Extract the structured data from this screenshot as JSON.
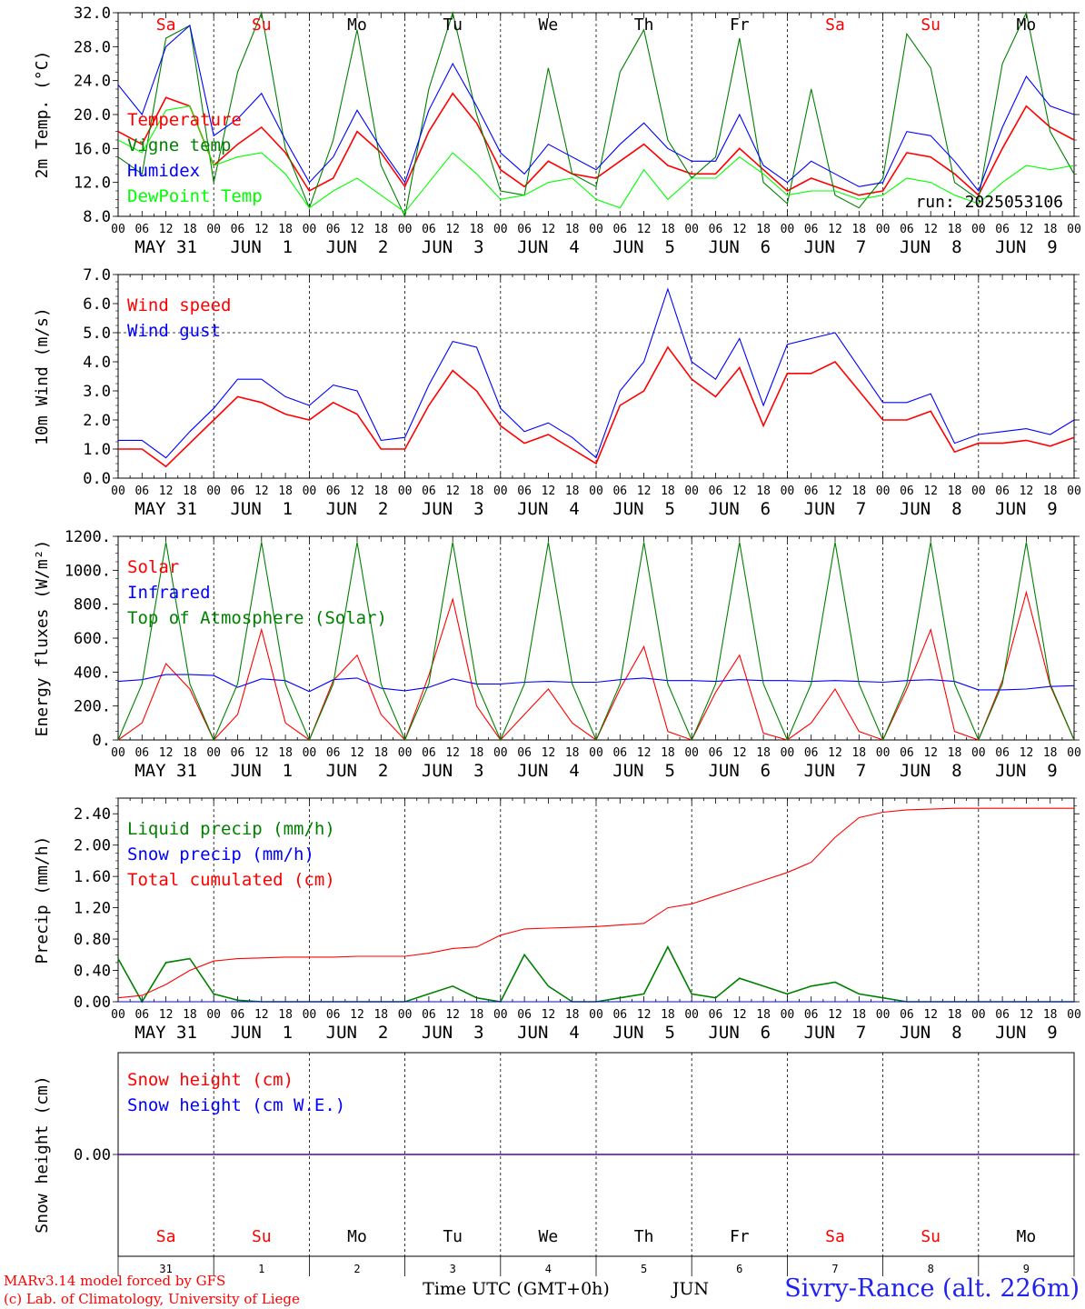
{
  "footer": {
    "credit_line1": "MARv3.14 model forced by GFS",
    "credit_line2": "(c) Lab. of Climatology, University of Liege",
    "xaxis_title": "Time UTC (GMT+0h)",
    "month": "JUN",
    "station": "Sivry-Rance (alt. 226m)"
  },
  "days": {
    "weekday_labels": [
      "Sa",
      "Su",
      "Mo",
      "Tu",
      "We",
      "Th",
      "Fr",
      "Sa",
      "Su",
      "Mo"
    ],
    "weekday_colors": [
      "#ff0000",
      "#ff0000",
      "#000000",
      "#000000",
      "#000000",
      "#000000",
      "#000000",
      "#ff0000",
      "#ff0000",
      "#000000"
    ],
    "date_labels": [
      "MAY 31",
      "JUN  1",
      "JUN  2",
      "JUN  3",
      "JUN  4",
      "JUN  5",
      "JUN  6",
      "JUN  7",
      "JUN  8",
      "JUN  9"
    ],
    "day_numbers": [
      "31",
      "1",
      "2",
      "3",
      "4",
      "5",
      "6",
      "7",
      "8",
      "9"
    ],
    "hour_ticks": [
      "00",
      "06",
      "12",
      "18"
    ],
    "hour_end": "00"
  },
  "chart_data": [
    {
      "type": "line",
      "ylabel": "2m Temp. (°C)",
      "ylim": [
        8,
        32
      ],
      "yticks": [
        "8.0",
        "12.0",
        "16.0",
        "20.0",
        "24.0",
        "28.0",
        "32.0"
      ],
      "run_label": "run: 2025053106",
      "x_hours": [
        0,
        6,
        12,
        18,
        24,
        30,
        36,
        42,
        48,
        54,
        60,
        66,
        72,
        78,
        84,
        90,
        96,
        102,
        108,
        114,
        120,
        126,
        132,
        138,
        144,
        150,
        156,
        162,
        168,
        174,
        180,
        186,
        192,
        198,
        204,
        210,
        216,
        222,
        228,
        234,
        240
      ],
      "series": [
        {
          "name": "Temperature",
          "color": "#ff0000",
          "values": [
            18.0,
            16.5,
            22.0,
            21.0,
            14.0,
            16.5,
            18.5,
            15.5,
            11.0,
            12.5,
            18.0,
            15.5,
            11.5,
            18.0,
            22.5,
            19.0,
            13.5,
            11.5,
            14.5,
            13.0,
            12.5,
            14.5,
            16.5,
            14.0,
            13.0,
            13.0,
            16.0,
            13.5,
            11.0,
            12.5,
            11.5,
            10.5,
            11.0,
            15.5,
            15.0,
            13.0,
            10.5,
            16.0,
            21.0,
            18.5,
            17.0
          ]
        },
        {
          "name": "Vigne temp",
          "color": "#008000",
          "values": [
            15.0,
            13.0,
            29.0,
            30.5,
            12.0,
            25.0,
            32.0,
            16.0,
            9.0,
            17.0,
            30.0,
            14.0,
            8.0,
            23.0,
            32.0,
            20.0,
            11.0,
            10.5,
            25.5,
            13.0,
            11.5,
            25.0,
            30.0,
            17.0,
            12.5,
            15.0,
            29.0,
            12.0,
            9.5,
            23.0,
            10.5,
            9.0,
            12.5,
            29.5,
            25.5,
            12.0,
            10.0,
            26.0,
            32.0,
            18.0,
            13.0
          ]
        },
        {
          "name": "Humidex",
          "color": "#0000ff",
          "values": [
            23.5,
            20.0,
            28.0,
            30.5,
            17.5,
            19.5,
            22.5,
            17.0,
            12.0,
            15.0,
            20.5,
            16.0,
            12.0,
            20.5,
            26.0,
            21.0,
            15.5,
            13.0,
            16.5,
            15.0,
            13.5,
            16.5,
            19.0,
            16.0,
            14.5,
            14.5,
            20.0,
            14.0,
            12.0,
            14.5,
            13.0,
            11.5,
            12.0,
            18.0,
            17.5,
            14.5,
            11.0,
            18.5,
            24.5,
            21.0,
            20.0
          ]
        },
        {
          "name": "DewPoint Temp",
          "color": "#00ff00",
          "values": [
            17.0,
            15.5,
            20.5,
            21.0,
            14.0,
            15.0,
            15.5,
            13.0,
            9.0,
            11.0,
            12.5,
            10.5,
            8.5,
            12.0,
            15.5,
            13.0,
            10.0,
            10.5,
            12.0,
            12.5,
            10.0,
            9.0,
            13.5,
            10.0,
            12.5,
            12.5,
            15.0,
            13.0,
            10.5,
            11.0,
            11.0,
            10.0,
            10.5,
            12.5,
            12.0,
            10.5,
            9.5,
            12.0,
            14.0,
            13.5,
            14.0
          ]
        }
      ]
    },
    {
      "type": "line",
      "ylabel": "10m Wind (m/s)",
      "ylim": [
        0,
        7
      ],
      "yticks": [
        "0.0",
        "1.0",
        "2.0",
        "3.0",
        "4.0",
        "5.0",
        "6.0",
        "7.0"
      ],
      "ref_line": 5,
      "x_hours": [
        0,
        6,
        12,
        18,
        24,
        30,
        36,
        42,
        48,
        54,
        60,
        66,
        72,
        78,
        84,
        90,
        96,
        102,
        108,
        114,
        120,
        126,
        132,
        138,
        144,
        150,
        156,
        162,
        168,
        174,
        180,
        186,
        192,
        198,
        204,
        210,
        216,
        222,
        228,
        234,
        240
      ],
      "series": [
        {
          "name": "Wind speed",
          "color": "#ff0000",
          "values": [
            1.0,
            1.0,
            0.4,
            1.2,
            2.0,
            2.8,
            2.6,
            2.2,
            2.0,
            2.6,
            2.2,
            1.0,
            1.0,
            2.5,
            3.7,
            3.0,
            1.8,
            1.2,
            1.5,
            1.0,
            0.5,
            2.5,
            3.0,
            4.5,
            3.4,
            2.8,
            3.8,
            1.8,
            3.6,
            3.6,
            4.0,
            3.0,
            2.0,
            2.0,
            2.3,
            0.9,
            1.2,
            1.2,
            1.3,
            1.1,
            1.4
          ]
        },
        {
          "name": "Wind gust",
          "color": "#0000ff",
          "values": [
            1.3,
            1.3,
            0.7,
            1.6,
            2.4,
            3.4,
            3.4,
            2.8,
            2.5,
            3.2,
            3.0,
            1.3,
            1.4,
            3.2,
            4.7,
            4.5,
            2.4,
            1.6,
            1.9,
            1.4,
            0.7,
            3.0,
            4.0,
            6.5,
            4.0,
            3.4,
            4.8,
            2.5,
            4.6,
            4.8,
            5.0,
            3.8,
            2.6,
            2.6,
            2.9,
            1.2,
            1.5,
            1.6,
            1.7,
            1.5,
            2.0
          ]
        }
      ]
    },
    {
      "type": "line",
      "ylabel": "Energy fluxes (W/m²)",
      "ylim": [
        0,
        1200
      ],
      "yticks": [
        "0.",
        "200.",
        "400.",
        "600.",
        "800.",
        "1000.",
        "1200."
      ],
      "x_hours": [
        0,
        6,
        12,
        18,
        24,
        30,
        36,
        42,
        48,
        54,
        60,
        66,
        72,
        78,
        84,
        90,
        96,
        102,
        108,
        114,
        120,
        126,
        132,
        138,
        144,
        150,
        156,
        162,
        168,
        174,
        180,
        186,
        192,
        198,
        204,
        210,
        216,
        222,
        228,
        234,
        240
      ],
      "series": [
        {
          "name": "Solar",
          "color": "#ff0000",
          "values": [
            0,
            100,
            450,
            300,
            0,
            150,
            650,
            100,
            0,
            350,
            500,
            150,
            0,
            380,
            830,
            200,
            0,
            150,
            300,
            100,
            0,
            300,
            550,
            50,
            0,
            280,
            500,
            40,
            0,
            100,
            300,
            50,
            0,
            300,
            650,
            50,
            0,
            350,
            870,
            320,
            0
          ]
        },
        {
          "name": "Infrared",
          "color": "#0000ff",
          "values": [
            345,
            355,
            385,
            385,
            380,
            310,
            360,
            350,
            285,
            355,
            365,
            305,
            290,
            310,
            360,
            330,
            330,
            340,
            345,
            340,
            340,
            355,
            365,
            350,
            350,
            345,
            355,
            350,
            350,
            345,
            350,
            345,
            340,
            350,
            355,
            345,
            295,
            295,
            300,
            315,
            320
          ]
        },
        {
          "name": "Top of Atmosphere (Solar)",
          "color": "#008000",
          "values": [
            0,
            330,
            1165,
            330,
            0,
            330,
            1165,
            330,
            0,
            330,
            1165,
            330,
            0,
            330,
            1165,
            330,
            0,
            330,
            1165,
            330,
            0,
            330,
            1165,
            330,
            0,
            330,
            1165,
            330,
            0,
            330,
            1165,
            330,
            0,
            330,
            1165,
            330,
            0,
            330,
            1165,
            330,
            0
          ]
        }
      ]
    },
    {
      "type": "line",
      "ylabel": "Precip (mm/h)",
      "ylim": [
        0,
        2.6
      ],
      "yticks": [
        "0.00",
        "0.40",
        "0.80",
        "1.20",
        "1.60",
        "2.00",
        "2.40"
      ],
      "x_hours": [
        0,
        6,
        12,
        18,
        24,
        30,
        36,
        42,
        48,
        54,
        60,
        66,
        72,
        78,
        84,
        90,
        96,
        102,
        108,
        114,
        120,
        126,
        132,
        138,
        144,
        150,
        156,
        162,
        168,
        174,
        180,
        186,
        192,
        198,
        204,
        210,
        216,
        222,
        228,
        234,
        240
      ],
      "series": [
        {
          "name": "Liquid precip (mm/h)",
          "color": "#008000",
          "values": [
            0.55,
            0.0,
            0.5,
            0.55,
            0.1,
            0.02,
            0.0,
            0.0,
            0.0,
            0.0,
            0.0,
            0.0,
            0.0,
            0.1,
            0.2,
            0.05,
            0.0,
            0.6,
            0.2,
            0.0,
            0.0,
            0.05,
            0.1,
            0.7,
            0.1,
            0.05,
            0.3,
            0.2,
            0.1,
            0.2,
            0.25,
            0.1,
            0.05,
            0.0,
            0.0,
            0.0,
            0.0,
            0.0,
            0.0,
            0.0,
            0.0
          ]
        },
        {
          "name": "Snow precip (mm/h)",
          "color": "#0000ff",
          "values": [
            0,
            0,
            0,
            0,
            0,
            0,
            0,
            0,
            0,
            0,
            0,
            0,
            0,
            0,
            0,
            0,
            0,
            0,
            0,
            0,
            0,
            0,
            0,
            0,
            0,
            0,
            0,
            0,
            0,
            0,
            0,
            0,
            0,
            0,
            0,
            0,
            0,
            0,
            0,
            0,
            0
          ]
        },
        {
          "name": "Total cumulated (cm)",
          "color": "#ff0000",
          "values": [
            0.05,
            0.08,
            0.22,
            0.4,
            0.52,
            0.55,
            0.56,
            0.57,
            0.57,
            0.57,
            0.58,
            0.58,
            0.58,
            0.62,
            0.68,
            0.7,
            0.85,
            0.93,
            0.94,
            0.95,
            0.96,
            0.98,
            1.0,
            1.2,
            1.25,
            1.35,
            1.45,
            1.55,
            1.65,
            1.78,
            2.1,
            2.35,
            2.42,
            2.45,
            2.46,
            2.47,
            2.47,
            2.47,
            2.47,
            2.47,
            2.47
          ]
        }
      ]
    },
    {
      "type": "line",
      "ylabel": "Snow height (cm)",
      "ylim": [
        -1,
        1
      ],
      "yticks": [
        "0.00"
      ],
      "x_hours": [
        0,
        240
      ],
      "series": [
        {
          "name": "Snow height (cm)",
          "color": "#ff0000",
          "values": [
            0,
            0
          ]
        },
        {
          "name": "Snow height (cm W.E.)",
          "color": "#0000ff",
          "values": [
            0,
            0
          ]
        }
      ]
    }
  ]
}
